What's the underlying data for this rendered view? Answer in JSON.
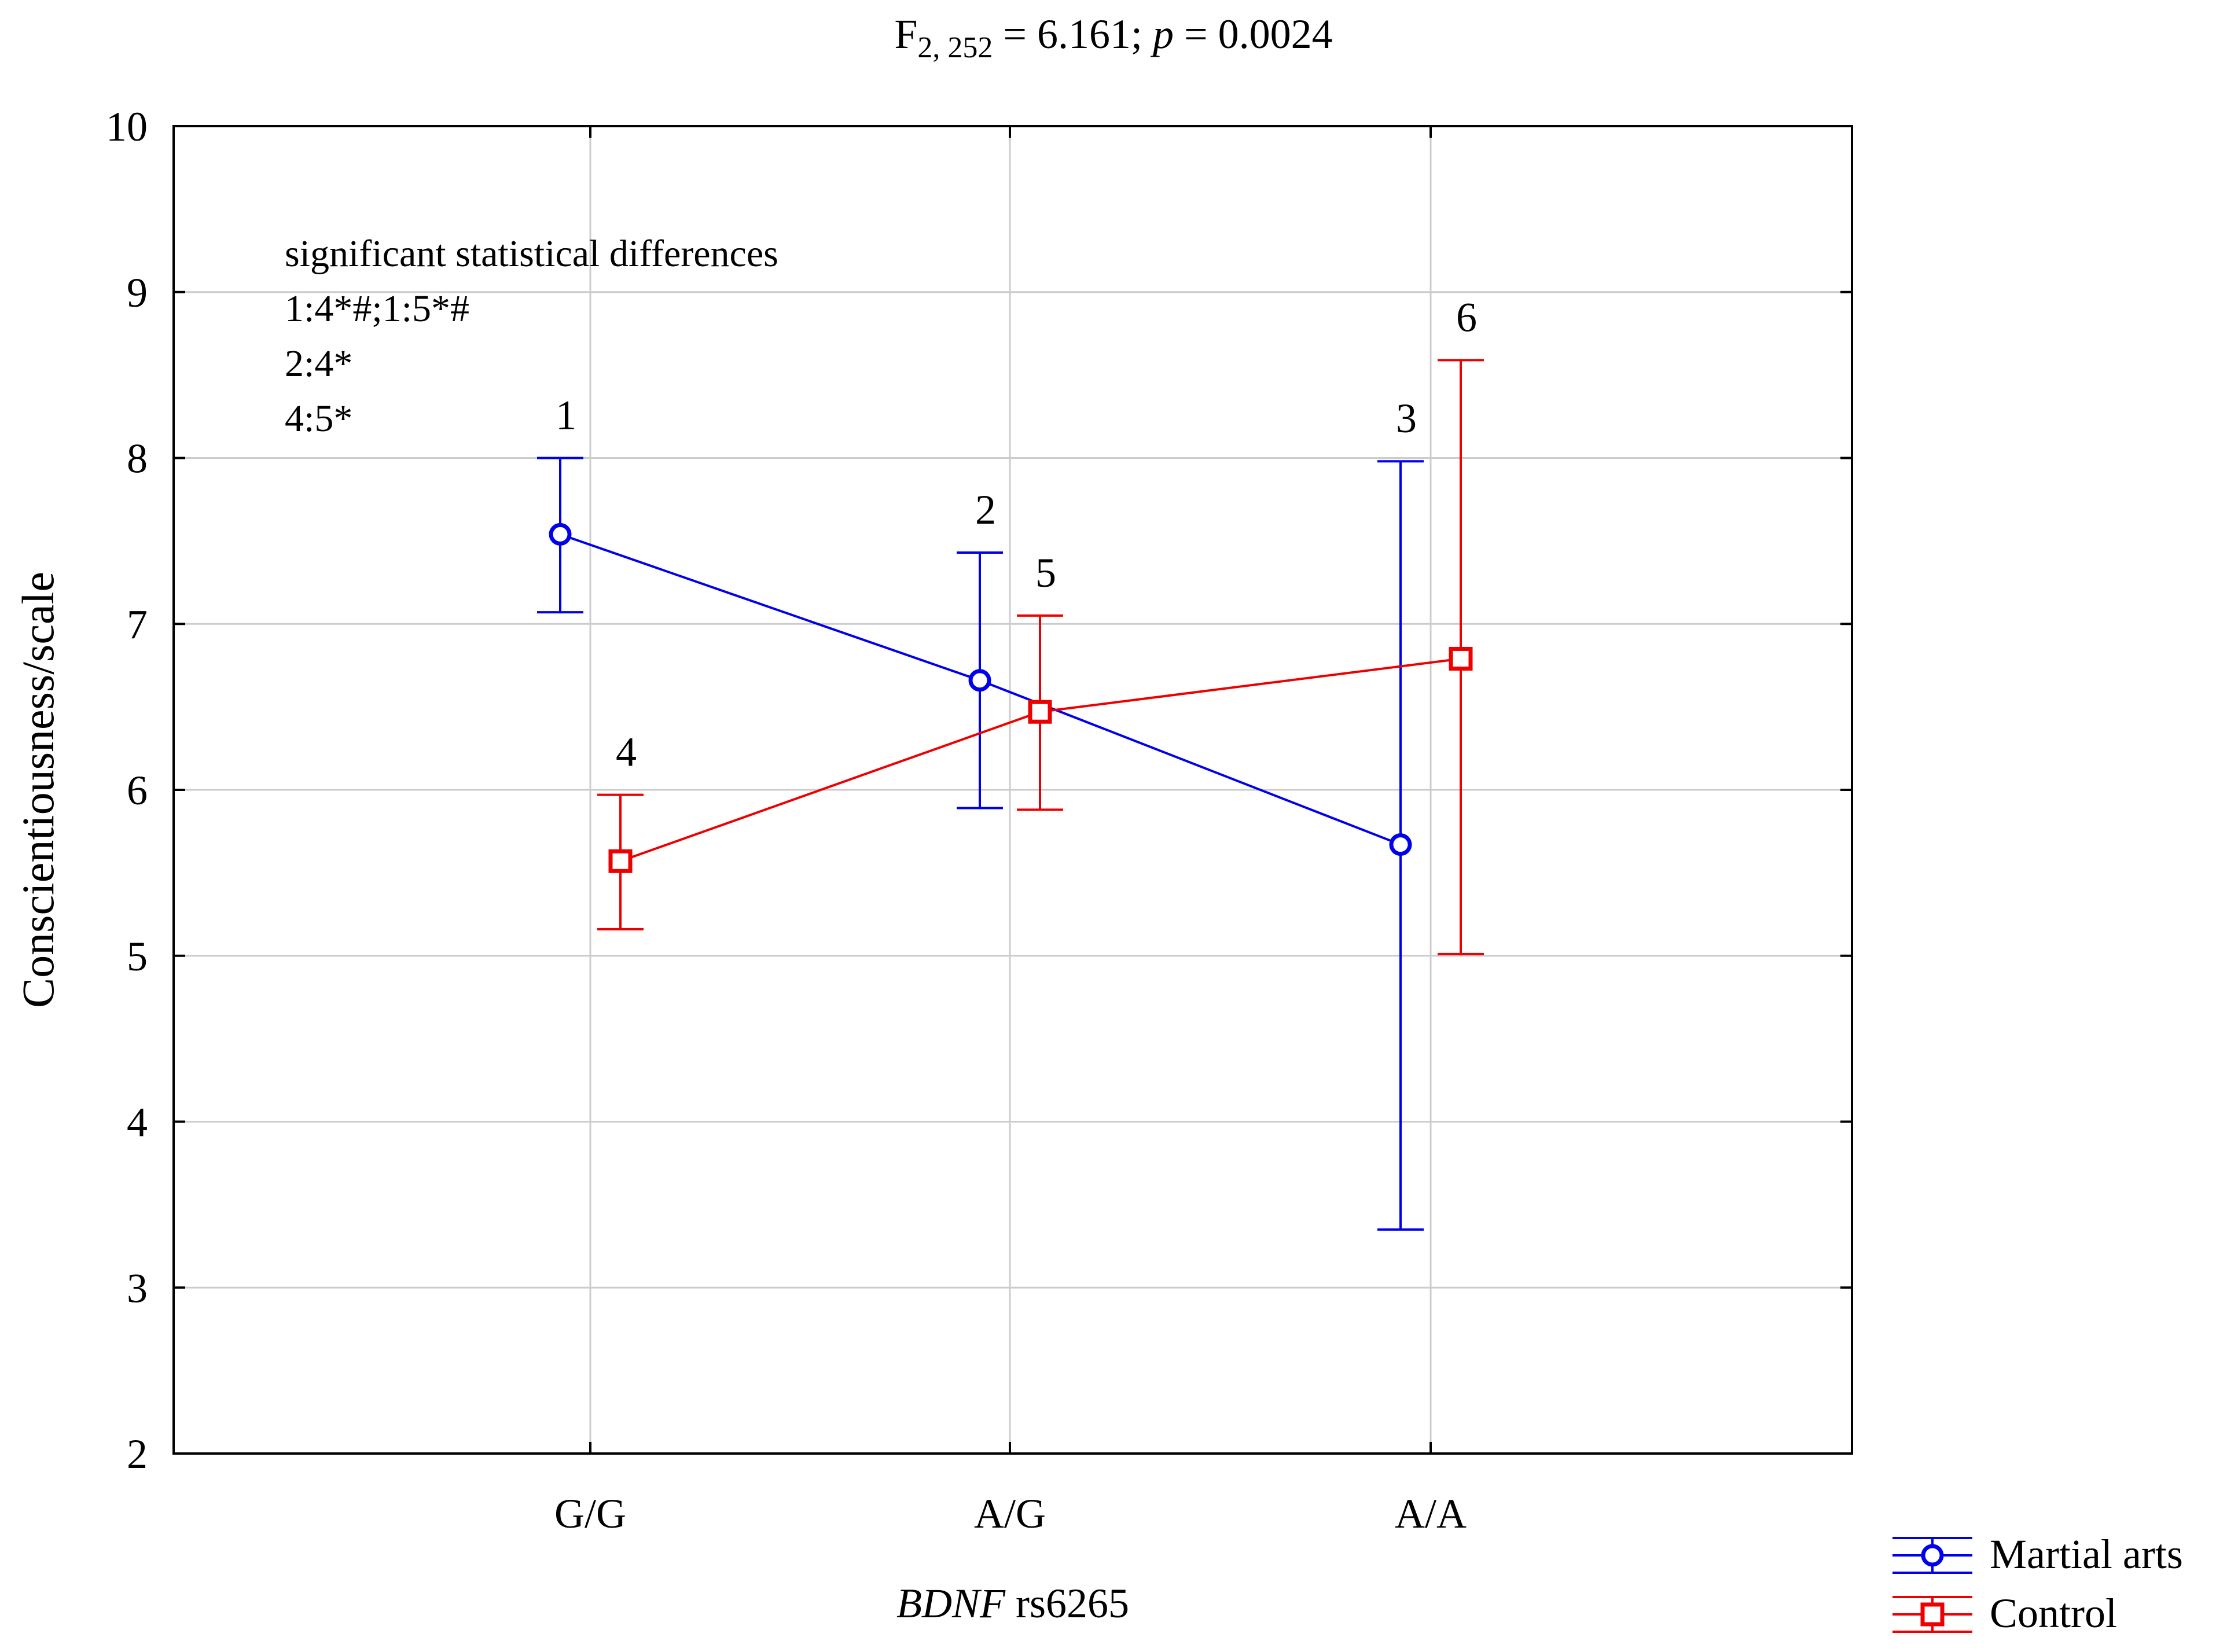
{
  "colors": {
    "martial": "#0000ee",
    "control": "#ee0000",
    "grid": "#cccccc",
    "axis": "#000000"
  },
  "chart_data": {
    "type": "line",
    "title": {
      "f_symbol": "F",
      "f_df": "2, 252",
      "f_rest": " = 6.161; ",
      "p_symbol": "p",
      "p_rest": " = 0.0024"
    },
    "xlabel": {
      "italic": "BDNF",
      "rest": " rs6265"
    },
    "ylabel": "Conscientiousness/scale",
    "categories": [
      "G/G",
      "A/G",
      "A/A"
    ],
    "ylim": [
      2,
      10
    ],
    "yticks": [
      "2",
      "3",
      "4",
      "5",
      "6",
      "7",
      "8",
      "9",
      "10"
    ],
    "grid": true,
    "legend_position": "bottom-right outside",
    "series": [
      {
        "name": "Martial arts",
        "marker": "circle",
        "color": "#0000ee",
        "values": [
          7.54,
          6.66,
          5.67
        ],
        "ci_low": [
          7.07,
          5.89,
          3.35
        ],
        "ci_high": [
          8.0,
          7.43,
          7.98
        ],
        "point_labels": [
          "1",
          "2",
          "3"
        ]
      },
      {
        "name": "Control",
        "marker": "square",
        "color": "#ee0000",
        "values": [
          5.57,
          6.47,
          6.79
        ],
        "ci_low": [
          5.16,
          5.88,
          5.01
        ],
        "ci_high": [
          5.97,
          7.05,
          8.59
        ],
        "point_labels": [
          "4",
          "5",
          "6"
        ]
      }
    ],
    "annotations": [
      "significant statistical differences",
      "1:4*#;1:5*#",
      "2:4*",
      "4:5*"
    ]
  }
}
